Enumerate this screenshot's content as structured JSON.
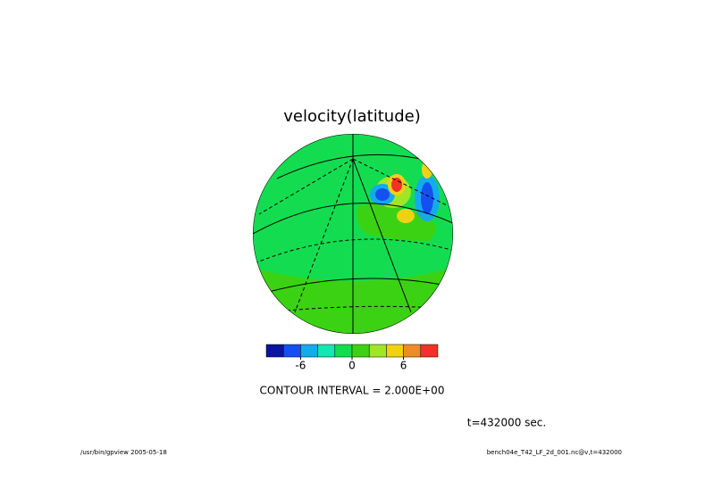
{
  "chart_data": {
    "type": "contour-map",
    "title": "velocity(latitude)",
    "colorbar": {
      "colors": [
        "#0a14a0",
        "#1450f0",
        "#14aaf0",
        "#14e6b4",
        "#14dc50",
        "#3cd214",
        "#a0e628",
        "#f0d214",
        "#f08c28",
        "#f03228"
      ],
      "lim": [
        -10,
        10
      ],
      "ticks": [
        -6,
        0,
        6
      ]
    },
    "contour_interval": "CONTOUR INTERVAL = 2.000E+00",
    "time_label": "t=432000 sec.",
    "footer_left": "/usr/bin/gpview  2005-05-18",
    "footer_right": "bench04e_T42_LF_2d_001.nc@v,t=432000"
  }
}
